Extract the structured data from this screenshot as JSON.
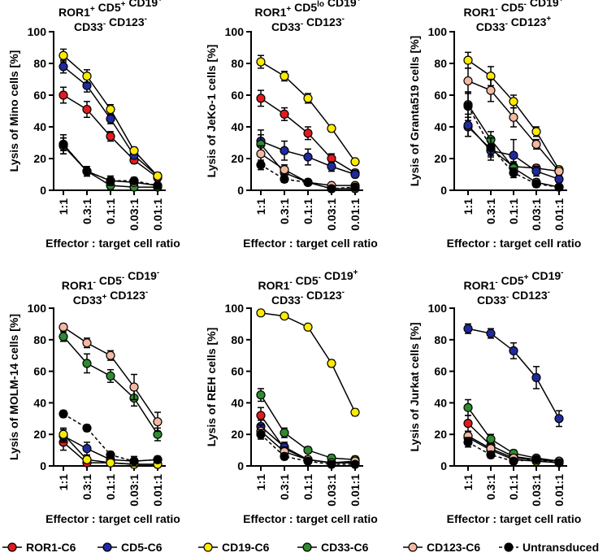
{
  "chart_data": {
    "type": "line",
    "categories": [
      "1:1",
      "0.3:1",
      "0.1:1",
      "0.03:1",
      "0.01:1"
    ],
    "xlabel": "Effector : target cell ratio",
    "ylim": [
      0,
      100
    ],
    "yticks": [
      0,
      20,
      40,
      60,
      80,
      100
    ],
    "legend": [
      {
        "name": "ROR1-C6",
        "color": "#e31a1c",
        "dashed": false
      },
      {
        "name": "CD5-C6",
        "color": "#1f2aa0",
        "dashed": false
      },
      {
        "name": "CD19-C6",
        "color": "#ffeb00",
        "dashed": false
      },
      {
        "name": "CD33-C6",
        "color": "#2e8b2e",
        "dashed": false
      },
      {
        "name": "CD123-C6",
        "color": "#f4b8a0",
        "dashed": false
      },
      {
        "name": "Untransduced",
        "color": "#000000",
        "dashed": true
      }
    ],
    "panels": [
      {
        "title_line1": [
          [
            "ROR1",
            "+"
          ],
          [
            "CD5",
            "+"
          ],
          [
            "CD19",
            "+"
          ]
        ],
        "title_line2": [
          [
            "CD33",
            "-"
          ],
          [
            "CD123",
            "-"
          ]
        ],
        "ylabel": "Lysis of Mino cells [%]",
        "series": [
          {
            "name": "ROR1-C6",
            "values": [
              60,
              51,
              34,
              19,
              8
            ],
            "err": [
              5,
              5,
              3,
              2,
              2
            ]
          },
          {
            "name": "CD5-C6",
            "values": [
              78,
              66,
              45,
              22,
              9
            ],
            "err": [
              4,
              4,
              3,
              2,
              2
            ]
          },
          {
            "name": "CD19-C6",
            "values": [
              85,
              72,
              51,
              25,
              9
            ],
            "err": [
              4,
              4,
              3,
              2,
              2
            ]
          },
          {
            "name": "CD33-C6",
            "values": [
              28,
              12,
              3,
              2,
              2
            ],
            "err": [
              5,
              3,
              2,
              1,
              1
            ]
          },
          {
            "name": "CD123-C6",
            "values": [
              29,
              12,
              6,
              5,
              3
            ],
            "err": [
              4,
              3,
              2,
              2,
              1
            ]
          },
          {
            "name": "Untransduced",
            "values": [
              29,
              12,
              6,
              6,
              3
            ],
            "err": [
              6,
              3,
              3,
              2,
              1
            ]
          }
        ]
      },
      {
        "title_line1": [
          [
            "ROR1",
            "+"
          ],
          [
            "CD5",
            "lo"
          ],
          [
            "CD19",
            "+"
          ]
        ],
        "title_line2": [
          [
            "CD33",
            "-"
          ],
          [
            "CD123",
            "-"
          ]
        ],
        "ylabel": "Lysis of JeKo-1 cells [%]",
        "series": [
          {
            "name": "ROR1-C6",
            "values": [
              58,
              48,
              36,
              20,
              11
            ],
            "err": [
              5,
              4,
              4,
              3,
              2
            ]
          },
          {
            "name": "CD5-C6",
            "values": [
              31,
              25,
              21,
              15,
              10
            ],
            "err": [
              7,
              6,
              5,
              3,
              2
            ]
          },
          {
            "name": "CD19-C6",
            "values": [
              81,
              72,
              58,
              39,
              18
            ],
            "err": [
              4,
              3,
              3,
              2,
              1
            ]
          },
          {
            "name": "CD33-C6",
            "values": [
              29,
              11,
              5,
              1,
              1
            ],
            "err": [
              6,
              3,
              2,
              1,
              1
            ]
          },
          {
            "name": "CD123-C6",
            "values": [
              23,
              13,
              5,
              3,
              3
            ],
            "err": [
              5,
              3,
              2,
              1,
              1
            ]
          },
          {
            "name": "Untransduced",
            "values": [
              16,
              7,
              5,
              1,
              2
            ],
            "err": [
              3,
              2,
              1,
              1,
              1
            ]
          }
        ]
      },
      {
        "title_line1": [
          [
            "ROR1",
            "-"
          ],
          [
            "CD5",
            "-"
          ],
          [
            "CD19",
            "+"
          ]
        ],
        "title_line2": [
          [
            "CD33",
            "-"
          ],
          [
            "CD123",
            "+"
          ]
        ],
        "ylabel": "Lysis of Granta519 cells [%]",
        "series": [
          {
            "name": "ROR1-C6",
            "values": [
              40,
              26,
              15,
              14,
              12
            ],
            "err": [
              6,
              4,
              3,
              2,
              2
            ]
          },
          {
            "name": "CD5-C6",
            "values": [
              41,
              25,
              22,
              12,
              7
            ],
            "err": [
              7,
              6,
              10,
              3,
              2
            ]
          },
          {
            "name": "CD19-C6",
            "values": [
              82,
              72,
              56,
              37,
              13
            ],
            "err": [
              5,
              6,
              4,
              3,
              2
            ]
          },
          {
            "name": "CD33-C6",
            "values": [
              54,
              32,
              14,
              5,
              2
            ],
            "err": [
              8,
              5,
              3,
              2,
              1
            ]
          },
          {
            "name": "CD123-C6",
            "values": [
              69,
              63,
              46,
              29,
              12
            ],
            "err": [
              8,
              7,
              6,
              3,
              2
            ]
          },
          {
            "name": "Untransduced",
            "values": [
              53,
              27,
              11,
              4,
              2
            ],
            "err": [
              9,
              6,
              3,
              2,
              1
            ]
          }
        ]
      },
      {
        "title_line1": [
          [
            "ROR1",
            "-"
          ],
          [
            "CD5",
            "-"
          ],
          [
            "CD19",
            "-"
          ]
        ],
        "title_line2": [
          [
            "CD33",
            "+"
          ],
          [
            "CD123",
            "-"
          ]
        ],
        "ylabel": "Lysis of MOLM-14 cells [%]",
        "series": [
          {
            "name": "ROR1-C6",
            "values": [
              15,
              2,
              2,
              1,
              1
            ],
            "err": [
              5,
              2,
              1,
              1,
              1
            ]
          },
          {
            "name": "CD5-C6",
            "values": [
              19,
              11,
              4,
              3,
              4
            ],
            "err": [
              4,
              4,
              2,
              2,
              2
            ]
          },
          {
            "name": "CD19-C6",
            "values": [
              20,
              4,
              2,
              1,
              1
            ],
            "err": [
              4,
              2,
              1,
              1,
              1
            ]
          },
          {
            "name": "CD33-C6",
            "values": [
              82,
              65,
              57,
              43,
              20
            ],
            "err": [
              3,
              6,
              4,
              5,
              4
            ]
          },
          {
            "name": "CD123-C6",
            "values": [
              88,
              78,
              70,
              50,
              28
            ],
            "err": [
              2,
              3,
              3,
              8,
              6
            ]
          },
          {
            "name": "Untransduced",
            "values": [
              33,
              24,
              7,
              3,
              4
            ],
            "err": [
              2,
              2,
              2,
              3,
              2
            ]
          }
        ]
      },
      {
        "title_line1": [
          [
            "ROR1",
            "-"
          ],
          [
            "CD5",
            "-"
          ],
          [
            "CD19",
            "+"
          ]
        ],
        "title_line2": [
          [
            "CD33",
            "-"
          ],
          [
            "CD123",
            "-"
          ]
        ],
        "ylabel": "Lysis of REH cells [%]",
        "series": [
          {
            "name": "ROR1-C6",
            "values": [
              32,
              11,
              4,
              2,
              2
            ],
            "err": [
              5,
              3,
              2,
              1,
              1
            ]
          },
          {
            "name": "CD5-C6",
            "values": [
              25,
              12,
              4,
              2,
              2
            ],
            "err": [
              4,
              3,
              2,
              1,
              1
            ]
          },
          {
            "name": "CD19-C6",
            "values": [
              97,
              95,
              88,
              65,
              34
            ],
            "err": [
              1,
              1,
              1,
              2,
              2
            ]
          },
          {
            "name": "CD33-C6",
            "values": [
              45,
              21,
              10,
              5,
              4
            ],
            "err": [
              4,
              3,
              2,
              2,
              2
            ]
          },
          {
            "name": "CD123-C6",
            "values": [
              22,
              9,
              4,
              2,
              3
            ],
            "err": [
              4,
              3,
              2,
              1,
              1
            ]
          },
          {
            "name": "Untransduced",
            "values": [
              20,
              6,
              3,
              1,
              1
            ],
            "err": [
              3,
              2,
              1,
              1,
              1
            ]
          }
        ]
      },
      {
        "title_line1": [
          [
            "ROR1",
            "-"
          ],
          [
            "CD5",
            "+"
          ],
          [
            "CD19",
            "-"
          ]
        ],
        "title_line2": [
          [
            "CD33",
            "-"
          ],
          [
            "CD123",
            "-"
          ]
        ],
        "ylabel": "Lysis of Jurkat cells [%]",
        "series": [
          {
            "name": "ROR1-C6",
            "values": [
              27,
              13,
              6,
              4,
              3
            ],
            "err": [
              5,
              3,
              2,
              1,
              1
            ]
          },
          {
            "name": "CD5-C6",
            "values": [
              87,
              84,
              73,
              56,
              30
            ],
            "err": [
              3,
              3,
              5,
              7,
              5
            ]
          },
          {
            "name": "CD19-C6",
            "values": [
              18,
              10,
              4,
              3,
              2
            ],
            "err": [
              3,
              3,
              2,
              1,
              1
            ]
          },
          {
            "name": "CD33-C6",
            "values": [
              37,
              17,
              8,
              5,
              3
            ],
            "err": [
              5,
              3,
              2,
              1,
              1
            ]
          },
          {
            "name": "CD123-C6",
            "values": [
              19,
              11,
              5,
              4,
              3
            ],
            "err": [
              3,
              3,
              2,
              1,
              1
            ]
          },
          {
            "name": "Untransduced",
            "values": [
              15,
              7,
              3,
              4,
              2
            ],
            "err": [
              3,
              2,
              1,
              1,
              1
            ]
          }
        ]
      }
    ]
  }
}
